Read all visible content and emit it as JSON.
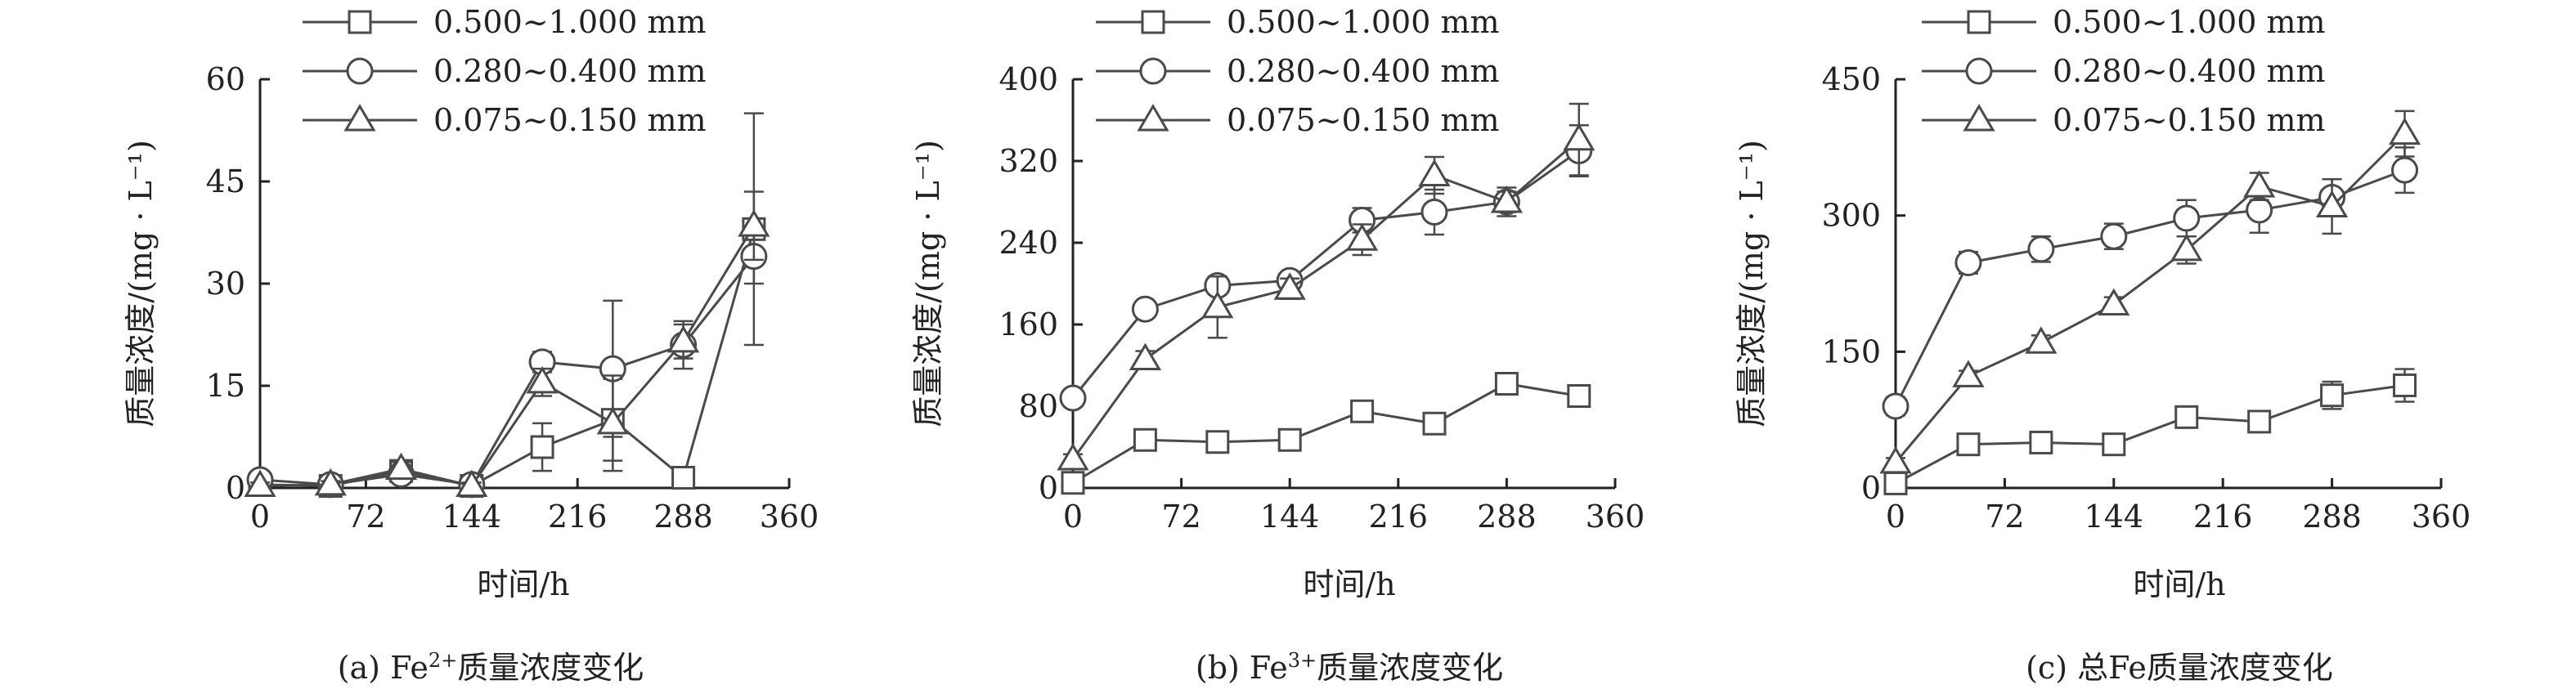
{
  "legend_labels": [
    "0.500~1.000 mm",
    "0.280~0.400 mm",
    "0.075~0.150 mm"
  ],
  "colors": {
    "line": "#4a4a4a",
    "axis": "#222222",
    "marker_fill": "#ffffff"
  },
  "chart_data": [
    {
      "type": "line",
      "caption_prefix": "(a) Fe",
      "caption_sup": "2+",
      "caption_suffix": "质量浓度变化",
      "xlabel": "时间/h",
      "ylabel": "质量浓度/(mg · L⁻¹)",
      "xlim": [
        0,
        360
      ],
      "ylim": [
        0,
        60
      ],
      "xticks": [
        0,
        72,
        144,
        216,
        288,
        360
      ],
      "yticks": [
        0,
        15,
        30,
        45,
        60
      ],
      "legend_position": "top",
      "series": [
        {
          "name": "0.500~1.000 mm",
          "marker": "square",
          "x": [
            0,
            48,
            96,
            144,
            192,
            240,
            288,
            336
          ],
          "y": [
            0.5,
            0.3,
            2.5,
            0.3,
            6,
            10,
            1.5,
            38
          ],
          "err": [
            0.5,
            0.5,
            1.5,
            0.5,
            3.5,
            6,
            0.5,
            17
          ]
        },
        {
          "name": "0.280~0.400 mm",
          "marker": "circle",
          "x": [
            0,
            48,
            96,
            144,
            192,
            240,
            288,
            336
          ],
          "y": [
            1.2,
            0.5,
            2.0,
            0.5,
            18.5,
            17.5,
            21,
            34
          ],
          "err": [
            0.5,
            0.5,
            1.0,
            0.5,
            1.5,
            10,
            3.5,
            4
          ]
        },
        {
          "name": "0.075~0.150 mm",
          "marker": "triangle",
          "x": [
            0,
            48,
            96,
            144,
            192,
            240,
            288,
            336
          ],
          "y": [
            0.3,
            0.5,
            2.8,
            0.3,
            15.5,
            9.5,
            21.5,
            38.5
          ],
          "err": [
            0.5,
            0.5,
            1.0,
            0.5,
            2.0,
            7,
            2.5,
            5
          ]
        }
      ]
    },
    {
      "type": "line",
      "caption_prefix": "(b) Fe",
      "caption_sup": "3+",
      "caption_suffix": "质量浓度变化",
      "xlabel": "时间/h",
      "ylabel": "质量浓度/(mg · L⁻¹)",
      "xlim": [
        0,
        360
      ],
      "ylim": [
        0,
        400
      ],
      "xticks": [
        0,
        72,
        144,
        216,
        288,
        360
      ],
      "yticks": [
        0,
        80,
        160,
        240,
        320,
        400
      ],
      "legend_position": "top",
      "series": [
        {
          "name": "0.500~1.000 mm",
          "marker": "square",
          "x": [
            0,
            48,
            96,
            144,
            192,
            240,
            288,
            336
          ],
          "y": [
            5,
            47,
            45,
            47,
            75,
            63,
            102,
            90
          ],
          "err": [
            3,
            8,
            6,
            8,
            8,
            8,
            10,
            8
          ]
        },
        {
          "name": "0.280~0.400 mm",
          "marker": "circle",
          "x": [
            0,
            48,
            96,
            144,
            192,
            240,
            288,
            336
          ],
          "y": [
            88,
            175,
            198,
            203,
            262,
            270,
            280,
            330
          ],
          "err": [
            8,
            8,
            8,
            8,
            12,
            22,
            14,
            25
          ]
        },
        {
          "name": "0.075~0.150 mm",
          "marker": "triangle",
          "x": [
            0,
            48,
            96,
            144,
            192,
            240,
            288,
            336
          ],
          "y": [
            28,
            126,
            177,
            195,
            243,
            306,
            280,
            341
          ],
          "err": [
            5,
            8,
            30,
            10,
            15,
            18,
            10,
            35
          ]
        }
      ]
    },
    {
      "type": "line",
      "caption_prefix": "(c) 总Fe",
      "caption_sup": "",
      "caption_suffix": "质量浓度变化",
      "xlabel": "时间/h",
      "ylabel": "质量浓度/(mg · L⁻¹)",
      "xlim": [
        0,
        360
      ],
      "ylim": [
        0,
        450
      ],
      "xticks": [
        0,
        72,
        144,
        216,
        288,
        360
      ],
      "yticks": [
        0,
        150,
        300,
        450
      ],
      "legend_position": "top",
      "series": [
        {
          "name": "0.500~1.000 mm",
          "marker": "square",
          "x": [
            0,
            48,
            96,
            144,
            192,
            240,
            288,
            336
          ],
          "y": [
            5,
            48,
            50,
            48,
            78,
            73,
            102,
            113
          ],
          "err": [
            3,
            8,
            8,
            8,
            10,
            10,
            15,
            18
          ]
        },
        {
          "name": "0.280~0.400 mm",
          "marker": "circle",
          "x": [
            0,
            48,
            96,
            144,
            192,
            240,
            288,
            336
          ],
          "y": [
            90,
            248,
            263,
            277,
            297,
            306,
            320,
            350
          ],
          "err": [
            10,
            12,
            14,
            14,
            20,
            25,
            20,
            25
          ]
        },
        {
          "name": "0.075~0.150 mm",
          "marker": "triangle",
          "x": [
            0,
            48,
            96,
            144,
            192,
            240,
            288,
            336
          ],
          "y": [
            28,
            123,
            160,
            202,
            262,
            332,
            310,
            390
          ],
          "err": [
            5,
            6,
            8,
            8,
            15,
            15,
            30,
            25
          ]
        }
      ]
    }
  ]
}
